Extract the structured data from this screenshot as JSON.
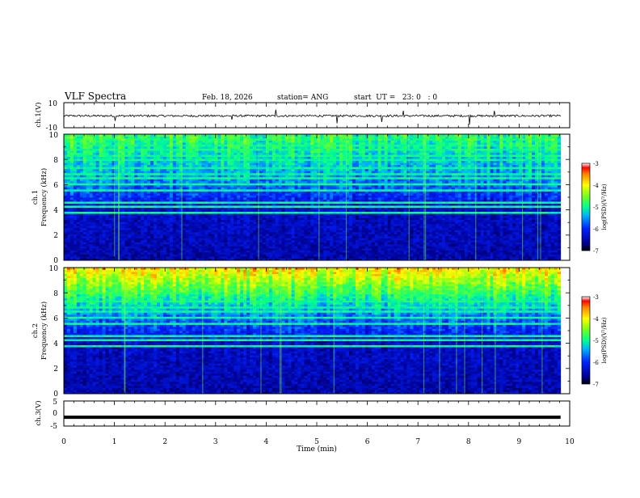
{
  "header": {
    "title": "VLF Spectra",
    "date": "Feb. 18, 2026",
    "station": "station= ANG",
    "start": "start  UT =   23: 0   : 0"
  },
  "chart_data": [
    {
      "type": "line",
      "name": "ch1-waveform",
      "ylabel": "ch.1(V)",
      "ylim": [
        -10,
        10
      ],
      "yticks": [
        "10",
        "-10"
      ],
      "baseline": -0.5,
      "description_value_range": [
        -1.5,
        1.5
      ]
    },
    {
      "type": "heatmap",
      "name": "ch1-spectrogram",
      "ylabel_line1": "ch.1",
      "ylabel_line2": "Frequency (kHz)",
      "ylim": [
        0,
        10
      ],
      "yticks": [
        "0",
        "2",
        "4",
        "6",
        "8",
        "10"
      ],
      "colorbar": {
        "label": "log(PSD)(V²/Hz)",
        "range": [
          -7,
          -3
        ],
        "ticks": [
          "-3",
          "-4",
          "-5",
          "-6",
          "-7"
        ]
      },
      "top_level": 0.55
    },
    {
      "type": "heatmap",
      "name": "ch2-spectrogram",
      "ylabel_line1": "ch.2",
      "ylabel_line2": "Frequency (kHz)",
      "ylim": [
        0,
        10
      ],
      "yticks": [
        "0",
        "2",
        "4",
        "6",
        "8",
        "10"
      ],
      "colorbar": {
        "label": "log(PSD)(V²/Hz)",
        "range": [
          -7,
          -3
        ],
        "ticks": [
          "-3",
          "-4",
          "-5",
          "-6",
          "-7"
        ]
      },
      "top_level": 0.78
    },
    {
      "type": "line",
      "name": "ch3-waveform",
      "ylabel": "ch.3(V)",
      "ylim": [
        -5,
        5
      ],
      "yticks": [
        "5",
        "0",
        "-5"
      ],
      "value": -1.5
    }
  ],
  "xaxis": {
    "label": "Time  (min)",
    "range": [
      0,
      10
    ],
    "ticks": [
      "0",
      "1",
      "2",
      "3",
      "4",
      "5",
      "6",
      "7",
      "8",
      "9",
      "10"
    ],
    "data_end": 9.82
  }
}
